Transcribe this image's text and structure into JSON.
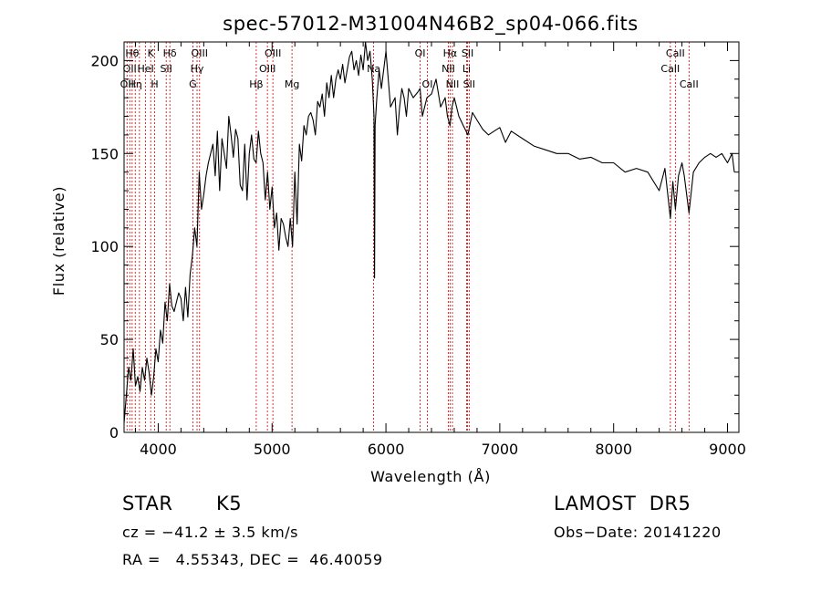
{
  "chart_data": {
    "type": "line",
    "title": "spec-57012-M31004N46B2_sp04-066.fits",
    "xlabel": "Wavelength (Å)",
    "ylabel": "Flux (relative)",
    "xlim": [
      3700,
      9100
    ],
    "ylim": [
      0,
      210
    ],
    "xticks": [
      4000,
      5000,
      6000,
      7000,
      8000,
      9000
    ],
    "yticks": [
      0,
      50,
      100,
      150,
      200
    ],
    "grid": false,
    "line_color": "#000000",
    "marker_color": "#cc0000",
    "spectrum": {
      "x": [
        3700,
        3720,
        3740,
        3760,
        3780,
        3800,
        3820,
        3840,
        3860,
        3880,
        3900,
        3920,
        3940,
        3960,
        3980,
        4000,
        4020,
        4040,
        4060,
        4080,
        4100,
        4120,
        4140,
        4160,
        4180,
        4200,
        4220,
        4240,
        4260,
        4280,
        4300,
        4320,
        4340,
        4360,
        4380,
        4400,
        4420,
        4440,
        4460,
        4480,
        4500,
        4520,
        4540,
        4560,
        4580,
        4600,
        4620,
        4640,
        4660,
        4680,
        4700,
        4720,
        4740,
        4760,
        4780,
        4800,
        4820,
        4840,
        4860,
        4880,
        4900,
        4920,
        4940,
        4960,
        4980,
        5000,
        5020,
        5040,
        5060,
        5080,
        5100,
        5120,
        5140,
        5160,
        5180,
        5200,
        5220,
        5240,
        5260,
        5280,
        5300,
        5320,
        5340,
        5360,
        5380,
        5400,
        5420,
        5440,
        5460,
        5480,
        5500,
        5520,
        5540,
        5560,
        5580,
        5600,
        5620,
        5640,
        5660,
        5680,
        5700,
        5720,
        5740,
        5760,
        5780,
        5800,
        5820,
        5840,
        5860,
        5880,
        5895,
        5900,
        5905,
        5920,
        5940,
        5960,
        5980,
        6000,
        6040,
        6080,
        6100,
        6120,
        6140,
        6160,
        6180,
        6200,
        6240,
        6280,
        6300,
        6320,
        6340,
        6360,
        6400,
        6440,
        6480,
        6520,
        6540,
        6563,
        6580,
        6600,
        6640,
        6680,
        6720,
        6760,
        6800,
        6850,
        6900,
        6950,
        7000,
        7050,
        7100,
        7200,
        7300,
        7400,
        7500,
        7600,
        7700,
        7800,
        7900,
        8000,
        8100,
        8200,
        8300,
        8400,
        8450,
        8498,
        8520,
        8542,
        8570,
        8600,
        8620,
        8662,
        8700,
        8750,
        8800,
        8850,
        8900,
        8950,
        9000,
        9040,
        9060
      ],
      "y": [
        5,
        20,
        35,
        28,
        45,
        25,
        30,
        22,
        35,
        28,
        40,
        32,
        20,
        30,
        45,
        38,
        55,
        48,
        70,
        60,
        80,
        68,
        65,
        70,
        75,
        72,
        60,
        78,
        62,
        85,
        95,
        110,
        100,
        140,
        120,
        128,
        138,
        145,
        150,
        155,
        138,
        162,
        130,
        158,
        150,
        142,
        170,
        160,
        148,
        163,
        158,
        133,
        130,
        155,
        125,
        150,
        160,
        147,
        145,
        162,
        150,
        145,
        125,
        140,
        120,
        132,
        110,
        118,
        98,
        115,
        112,
        105,
        100,
        115,
        100,
        140,
        112,
        155,
        146,
        165,
        160,
        170,
        172,
        168,
        160,
        178,
        175,
        182,
        170,
        188,
        180,
        192,
        180,
        190,
        195,
        190,
        198,
        188,
        195,
        202,
        205,
        195,
        200,
        192,
        203,
        195,
        210,
        200,
        205,
        190,
        170,
        83,
        165,
        180,
        195,
        185,
        195,
        205,
        175,
        180,
        160,
        175,
        185,
        180,
        170,
        185,
        180,
        183,
        185,
        170,
        175,
        180,
        182,
        190,
        175,
        180,
        170,
        165,
        175,
        180,
        170,
        165,
        160,
        172,
        168,
        163,
        160,
        162,
        164,
        156,
        162,
        158,
        154,
        152,
        150,
        150,
        147,
        148,
        145,
        145,
        140,
        142,
        140,
        130,
        142,
        115,
        135,
        120,
        138,
        145,
        138,
        118,
        140,
        145,
        148,
        150,
        148,
        150,
        145,
        150,
        140
      ]
    },
    "markers": [
      {
        "x": 3726,
        "label": "OII",
        "row": 2
      },
      {
        "x": 3750,
        "label": "OII",
        "row": 1
      },
      {
        "x": 3771,
        "label": "Hθ",
        "row": 0
      },
      {
        "x": 3798,
        "label": "Hη",
        "row": 2
      },
      {
        "x": 3835,
        "label": "",
        "row": 0
      },
      {
        "x": 3889,
        "label": "HeI",
        "row": 1
      },
      {
        "x": 3934,
        "label": "K",
        "row": 0
      },
      {
        "x": 3969,
        "label": "H",
        "row": 2
      },
      {
        "x": 4070,
        "label": "SII",
        "row": 1
      },
      {
        "x": 4102,
        "label": "Hδ",
        "row": 0
      },
      {
        "x": 4304,
        "label": "G",
        "row": 2
      },
      {
        "x": 4341,
        "label": "Hγ",
        "row": 1
      },
      {
        "x": 4363,
        "label": "OIII",
        "row": 0
      },
      {
        "x": 4861,
        "label": "Hβ",
        "row": 2
      },
      {
        "x": 4959,
        "label": "OIII",
        "row": 1
      },
      {
        "x": 5007,
        "label": "OIII",
        "row": 0
      },
      {
        "x": 5175,
        "label": "Mg",
        "row": 2
      },
      {
        "x": 5892,
        "label": "Na",
        "row": 1
      },
      {
        "x": 6300,
        "label": "OI",
        "row": 0
      },
      {
        "x": 6364,
        "label": "OI",
        "row": 2
      },
      {
        "x": 6548,
        "label": "NII",
        "row": 1
      },
      {
        "x": 6563,
        "label": "Hα",
        "row": 0
      },
      {
        "x": 6584,
        "label": "NII",
        "row": 2
      },
      {
        "x": 6708,
        "label": "Li",
        "row": 1
      },
      {
        "x": 6717,
        "label": "SII",
        "row": 0
      },
      {
        "x": 6731,
        "label": "SII",
        "row": 2
      },
      {
        "x": 8498,
        "label": "CaII",
        "row": 1
      },
      {
        "x": 8542,
        "label": "CaII",
        "row": 0
      },
      {
        "x": 8662,
        "label": "CaII",
        "row": 2
      }
    ]
  },
  "info": {
    "class_label": "STAR",
    "subclass": "K5",
    "survey": "LAMOST  DR5",
    "cz": "cz = −41.2 ± 3.5 km/s",
    "obs_date": "Obs−Date: 20141220",
    "coords": "RA =   4.55343, DEC =  46.40059"
  }
}
